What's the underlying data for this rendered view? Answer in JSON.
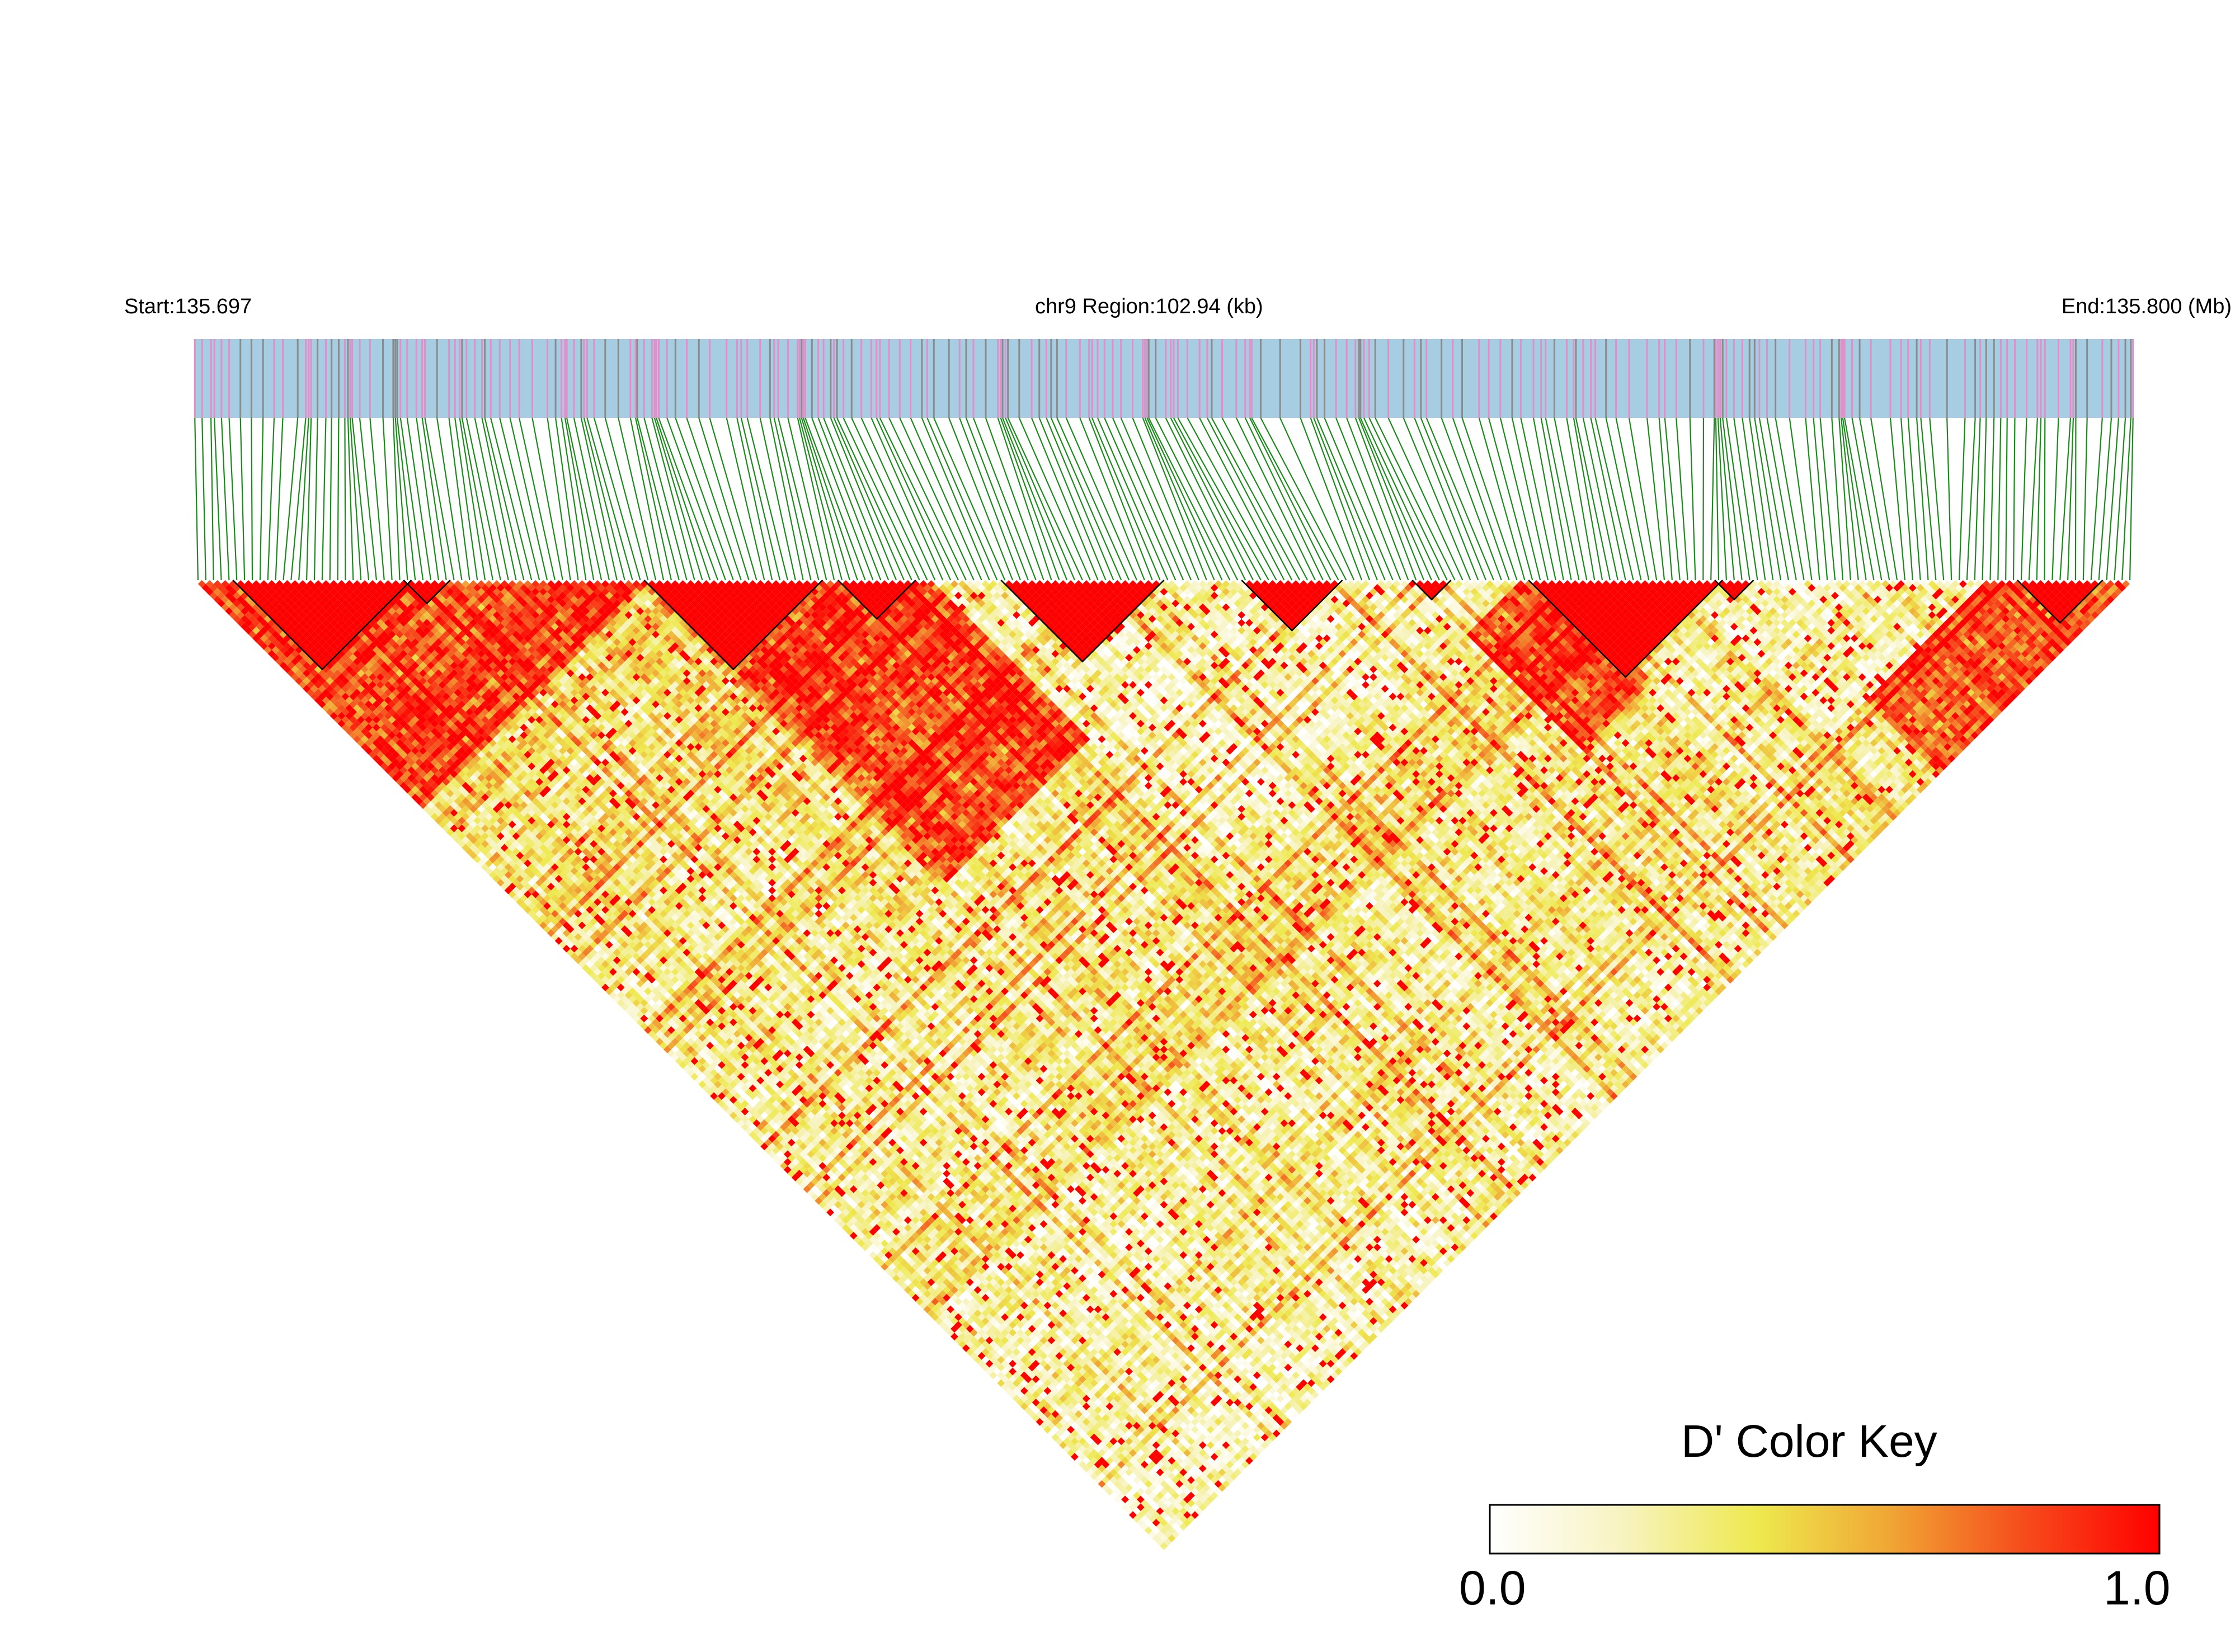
{
  "header": {
    "start_label": "Start:135.697",
    "region_label": "chr9 Region:102.94 (kb)",
    "end_label": "End:135.800 (Mb)"
  },
  "color_key": {
    "title": "D' Color Key",
    "min_label": "0.0",
    "max_label": "1.0",
    "stops": [
      "#ffffff",
      "#f7f3c0",
      "#eee94e",
      "#f0a534",
      "#f64b1c",
      "#ff0000"
    ]
  },
  "colors": {
    "track_background": "#a6cde2",
    "track_marker_colors": [
      "#e28fc9",
      "#8b8b8b"
    ],
    "connector_lines": "#1a8a1a",
    "block_outline": "#000000"
  },
  "chart_data": {
    "type": "heatmap",
    "metric": "D'",
    "chromosome": "chr9",
    "region_start_mb": 135.697,
    "region_end_mb": 135.8,
    "region_kb": 102.94,
    "value_range": [
      0,
      1
    ],
    "snp_count_estimate": 250,
    "ld_blocks_index_ranges": [
      [
        5,
        27
      ],
      [
        27,
        32
      ],
      [
        58,
        80
      ],
      [
        83,
        92
      ],
      [
        104,
        124
      ],
      [
        135,
        147
      ],
      [
        157,
        161
      ],
      [
        172,
        196
      ],
      [
        196,
        200
      ],
      [
        235,
        245
      ]
    ],
    "high_ld_regions_index_ranges": [
      [
        0,
        58
      ],
      [
        58,
        135
      ],
      [
        157,
        200
      ],
      [
        200,
        250
      ]
    ],
    "weak_ld_regions_index_ranges": [
      [
        95,
        170
      ],
      [
        175,
        230
      ]
    ]
  }
}
